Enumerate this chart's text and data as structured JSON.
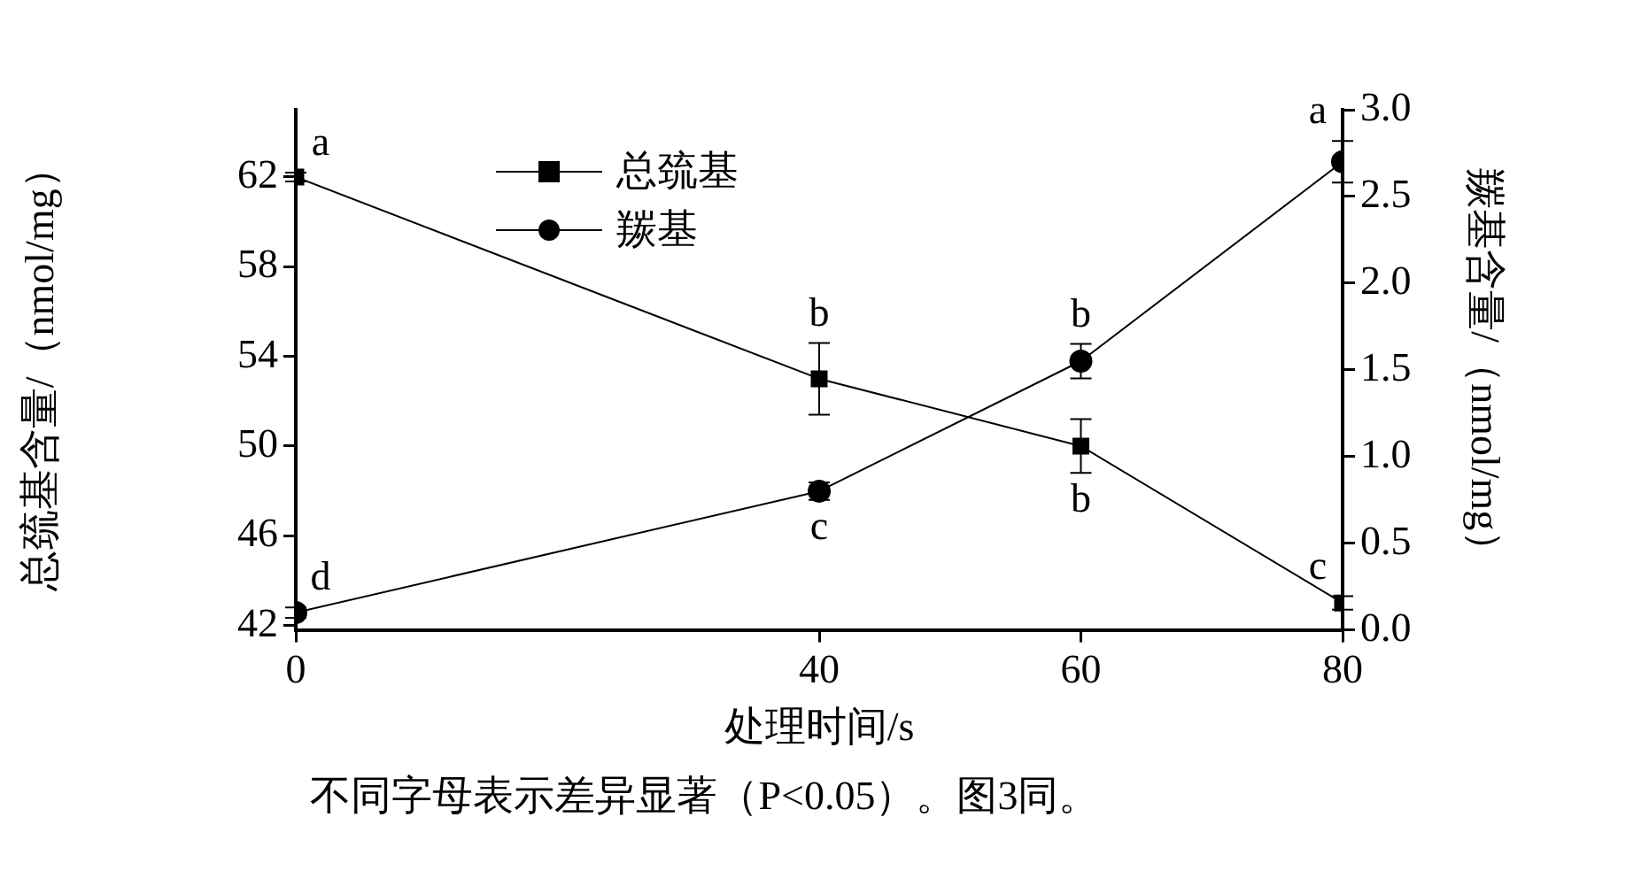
{
  "chart_data": {
    "type": "line",
    "xlabel": "处理时间/s",
    "ylabel": "总巯基含量/（nmol/mg）",
    "y2label": "羰基含量/（nmol/mg）",
    "x": [
      0,
      40,
      60,
      80
    ],
    "xlim": [
      0,
      80
    ],
    "xticks": [
      0,
      40,
      60,
      80
    ],
    "ylim": [
      41.8,
      65
    ],
    "yticks": [
      42,
      46,
      50,
      54,
      58,
      62
    ],
    "y2lim": [
      0,
      3.0
    ],
    "y2ticks": [
      {
        "value": 0,
        "label": "0.0"
      },
      0.5,
      {
        "value": 1,
        "label": "1.0"
      },
      1.5,
      {
        "value": 2,
        "label": "2.0"
      },
      2.5,
      {
        "value": 3,
        "label": "3.0"
      }
    ],
    "series": [
      {
        "name": "总巯基",
        "color": "#000000",
        "marker": "square",
        "values": [
          62.0,
          53.0,
          50.0,
          43.0
        ],
        "errors": [
          0.2,
          1.6,
          1.2,
          0.3
        ],
        "value_labels": [
          "a",
          "b",
          "b",
          "c"
        ]
      },
      {
        "name": "羰基",
        "color": "#000000",
        "marker": "circle",
        "axis": "y2",
        "values": [
          0.1,
          0.8,
          1.55,
          2.7
        ],
        "errors": [
          0.03,
          0.05,
          0.1,
          0.12
        ],
        "value_labels": [
          "d",
          "c",
          "b",
          "a"
        ]
      }
    ],
    "annotations": [
      "不同字母表示差异显著（P<0.05）。图3同。"
    ],
    "grid": false,
    "legend": "top left",
    "line_style": "solid"
  }
}
